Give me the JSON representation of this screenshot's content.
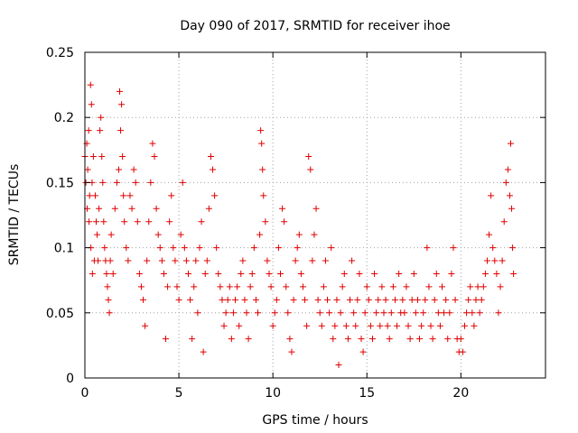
{
  "chart_data": {
    "type": "scatter",
    "title": "Day 090 of 2017, SRMTID for receiver ihoe",
    "xlabel": "GPS time / hours",
    "ylabel": "SRMTID / TECUs",
    "xlim": [
      0,
      24.5
    ],
    "ylim": [
      0,
      0.25
    ],
    "xticks": [
      0,
      5,
      10,
      15,
      20
    ],
    "xtick_labels": [
      "0",
      "5",
      "10",
      "15",
      "20"
    ],
    "yticks": [
      0,
      0.05,
      0.1,
      0.15,
      0.2,
      0.25
    ],
    "ytick_labels": [
      "0",
      "0.05",
      "0.1",
      "0.15",
      "0.2",
      "0.25"
    ],
    "grid": true,
    "marker": "+",
    "color": "#e00000",
    "series": [
      {
        "name": "ihoe",
        "points": [
          [
            0.0,
            0.17
          ],
          [
            0.05,
            0.15
          ],
          [
            0.1,
            0.18
          ],
          [
            0.12,
            0.13
          ],
          [
            0.15,
            0.16
          ],
          [
            0.2,
            0.19
          ],
          [
            0.22,
            0.12
          ],
          [
            0.25,
            0.14
          ],
          [
            0.3,
            0.225
          ],
          [
            0.32,
            0.1
          ],
          [
            0.35,
            0.21
          ],
          [
            0.38,
            0.15
          ],
          [
            0.4,
            0.08
          ],
          [
            0.45,
            0.17
          ],
          [
            0.5,
            0.09
          ],
          [
            0.55,
            0.14
          ],
          [
            0.6,
            0.12
          ],
          [
            0.65,
            0.11
          ],
          [
            0.7,
            0.09
          ],
          [
            0.75,
            0.13
          ],
          [
            0.8,
            0.19
          ],
          [
            0.85,
            0.2
          ],
          [
            0.9,
            0.17
          ],
          [
            0.95,
            0.15
          ],
          [
            1.0,
            0.12
          ],
          [
            1.05,
            0.1
          ],
          [
            1.1,
            0.09
          ],
          [
            1.15,
            0.08
          ],
          [
            1.2,
            0.07
          ],
          [
            1.25,
            0.06
          ],
          [
            1.3,
            0.05
          ],
          [
            1.35,
            0.09
          ],
          [
            1.4,
            0.11
          ],
          [
            1.5,
            0.08
          ],
          [
            1.6,
            0.13
          ],
          [
            1.7,
            0.15
          ],
          [
            1.8,
            0.16
          ],
          [
            1.85,
            0.22
          ],
          [
            1.9,
            0.19
          ],
          [
            1.95,
            0.21
          ],
          [
            2.0,
            0.17
          ],
          [
            2.05,
            0.14
          ],
          [
            2.1,
            0.12
          ],
          [
            2.2,
            0.1
          ],
          [
            2.3,
            0.09
          ],
          [
            2.4,
            0.14
          ],
          [
            2.5,
            0.13
          ],
          [
            2.6,
            0.16
          ],
          [
            2.7,
            0.15
          ],
          [
            2.8,
            0.12
          ],
          [
            2.9,
            0.08
          ],
          [
            3.0,
            0.07
          ],
          [
            3.1,
            0.06
          ],
          [
            3.2,
            0.04
          ],
          [
            3.3,
            0.09
          ],
          [
            3.4,
            0.12
          ],
          [
            3.5,
            0.15
          ],
          [
            3.6,
            0.18
          ],
          [
            3.7,
            0.17
          ],
          [
            3.8,
            0.13
          ],
          [
            3.9,
            0.11
          ],
          [
            4.0,
            0.1
          ],
          [
            4.1,
            0.09
          ],
          [
            4.2,
            0.08
          ],
          [
            4.3,
            0.03
          ],
          [
            4.4,
            0.07
          ],
          [
            4.5,
            0.12
          ],
          [
            4.6,
            0.14
          ],
          [
            4.7,
            0.1
          ],
          [
            4.8,
            0.09
          ],
          [
            4.9,
            0.07
          ],
          [
            5.0,
            0.06
          ],
          [
            5.1,
            0.11
          ],
          [
            5.2,
            0.15
          ],
          [
            5.3,
            0.1
          ],
          [
            5.4,
            0.09
          ],
          [
            5.5,
            0.08
          ],
          [
            5.6,
            0.06
          ],
          [
            5.7,
            0.03
          ],
          [
            5.8,
            0.07
          ],
          [
            5.9,
            0.09
          ],
          [
            6.0,
            0.05
          ],
          [
            6.1,
            0.1
          ],
          [
            6.2,
            0.12
          ],
          [
            6.3,
            0.02
          ],
          [
            6.4,
            0.08
          ],
          [
            6.5,
            0.09
          ],
          [
            6.6,
            0.13
          ],
          [
            6.7,
            0.17
          ],
          [
            6.8,
            0.16
          ],
          [
            6.9,
            0.14
          ],
          [
            7.0,
            0.1
          ],
          [
            7.1,
            0.08
          ],
          [
            7.2,
            0.07
          ],
          [
            7.3,
            0.06
          ],
          [
            7.4,
            0.04
          ],
          [
            7.5,
            0.05
          ],
          [
            7.6,
            0.06
          ],
          [
            7.7,
            0.07
          ],
          [
            7.8,
            0.03
          ],
          [
            7.9,
            0.05
          ],
          [
            8.0,
            0.06
          ],
          [
            8.1,
            0.07
          ],
          [
            8.2,
            0.04
          ],
          [
            8.3,
            0.08
          ],
          [
            8.4,
            0.09
          ],
          [
            8.5,
            0.06
          ],
          [
            8.6,
            0.05
          ],
          [
            8.7,
            0.03
          ],
          [
            8.8,
            0.07
          ],
          [
            8.9,
            0.08
          ],
          [
            9.0,
            0.1
          ],
          [
            9.1,
            0.06
          ],
          [
            9.2,
            0.05
          ],
          [
            9.3,
            0.11
          ],
          [
            9.35,
            0.19
          ],
          [
            9.4,
            0.18
          ],
          [
            9.45,
            0.16
          ],
          [
            9.5,
            0.14
          ],
          [
            9.6,
            0.12
          ],
          [
            9.7,
            0.09
          ],
          [
            9.8,
            0.08
          ],
          [
            9.9,
            0.07
          ],
          [
            10.0,
            0.04
          ],
          [
            10.1,
            0.05
          ],
          [
            10.2,
            0.06
          ],
          [
            10.3,
            0.1
          ],
          [
            10.4,
            0.08
          ],
          [
            10.5,
            0.13
          ],
          [
            10.6,
            0.12
          ],
          [
            10.7,
            0.07
          ],
          [
            10.8,
            0.05
          ],
          [
            10.9,
            0.03
          ],
          [
            11.0,
            0.02
          ],
          [
            11.1,
            0.06
          ],
          [
            11.2,
            0.09
          ],
          [
            11.3,
            0.1
          ],
          [
            11.4,
            0.11
          ],
          [
            11.5,
            0.08
          ],
          [
            11.6,
            0.07
          ],
          [
            11.7,
            0.06
          ],
          [
            11.8,
            0.04
          ],
          [
            11.9,
            0.17
          ],
          [
            12.0,
            0.16
          ],
          [
            12.1,
            0.09
          ],
          [
            12.2,
            0.11
          ],
          [
            12.3,
            0.13
          ],
          [
            12.4,
            0.06
          ],
          [
            12.5,
            0.05
          ],
          [
            12.6,
            0.04
          ],
          [
            12.7,
            0.07
          ],
          [
            12.8,
            0.09
          ],
          [
            12.9,
            0.06
          ],
          [
            13.0,
            0.05
          ],
          [
            13.1,
            0.1
          ],
          [
            13.2,
            0.03
          ],
          [
            13.3,
            0.04
          ],
          [
            13.4,
            0.06
          ],
          [
            13.5,
            0.01
          ],
          [
            13.6,
            0.05
          ],
          [
            13.7,
            0.07
          ],
          [
            13.8,
            0.08
          ],
          [
            13.9,
            0.04
          ],
          [
            14.0,
            0.03
          ],
          [
            14.1,
            0.06
          ],
          [
            14.2,
            0.09
          ],
          [
            14.3,
            0.05
          ],
          [
            14.4,
            0.04
          ],
          [
            14.5,
            0.06
          ],
          [
            14.6,
            0.08
          ],
          [
            14.7,
            0.03
          ],
          [
            14.8,
            0.02
          ],
          [
            14.9,
            0.05
          ],
          [
            15.0,
            0.07
          ],
          [
            15.1,
            0.06
          ],
          [
            15.2,
            0.04
          ],
          [
            15.3,
            0.03
          ],
          [
            15.4,
            0.08
          ],
          [
            15.5,
            0.05
          ],
          [
            15.6,
            0.06
          ],
          [
            15.7,
            0.04
          ],
          [
            15.8,
            0.07
          ],
          [
            15.9,
            0.05
          ],
          [
            16.0,
            0.06
          ],
          [
            16.1,
            0.04
          ],
          [
            16.2,
            0.03
          ],
          [
            16.3,
            0.05
          ],
          [
            16.4,
            0.07
          ],
          [
            16.5,
            0.06
          ],
          [
            16.6,
            0.04
          ],
          [
            16.7,
            0.08
          ],
          [
            16.8,
            0.05
          ],
          [
            16.9,
            0.06
          ],
          [
            17.0,
            0.05
          ],
          [
            17.1,
            0.07
          ],
          [
            17.2,
            0.04
          ],
          [
            17.3,
            0.03
          ],
          [
            17.4,
            0.06
          ],
          [
            17.5,
            0.08
          ],
          [
            17.6,
            0.05
          ],
          [
            17.7,
            0.06
          ],
          [
            17.8,
            0.03
          ],
          [
            17.9,
            0.04
          ],
          [
            18.0,
            0.05
          ],
          [
            18.1,
            0.06
          ],
          [
            18.2,
            0.1
          ],
          [
            18.3,
            0.07
          ],
          [
            18.4,
            0.04
          ],
          [
            18.5,
            0.03
          ],
          [
            18.6,
            0.06
          ],
          [
            18.7,
            0.08
          ],
          [
            18.8,
            0.05
          ],
          [
            18.9,
            0.04
          ],
          [
            19.0,
            0.07
          ],
          [
            19.1,
            0.05
          ],
          [
            19.2,
            0.06
          ],
          [
            19.3,
            0.03
          ],
          [
            19.4,
            0.05
          ],
          [
            19.5,
            0.08
          ],
          [
            19.6,
            0.1
          ],
          [
            19.7,
            0.06
          ],
          [
            19.8,
            0.03
          ],
          [
            19.9,
            0.02
          ],
          [
            20.0,
            0.03
          ],
          [
            20.1,
            0.02
          ],
          [
            20.2,
            0.04
          ],
          [
            20.3,
            0.05
          ],
          [
            20.4,
            0.06
          ],
          [
            20.5,
            0.07
          ],
          [
            20.6,
            0.05
          ],
          [
            20.7,
            0.04
          ],
          [
            20.8,
            0.06
          ],
          [
            20.9,
            0.07
          ],
          [
            21.0,
            0.05
          ],
          [
            21.1,
            0.06
          ],
          [
            21.2,
            0.07
          ],
          [
            21.3,
            0.08
          ],
          [
            21.4,
            0.09
          ],
          [
            21.5,
            0.11
          ],
          [
            21.6,
            0.14
          ],
          [
            21.7,
            0.1
          ],
          [
            21.8,
            0.09
          ],
          [
            21.9,
            0.08
          ],
          [
            22.0,
            0.05
          ],
          [
            22.1,
            0.07
          ],
          [
            22.2,
            0.09
          ],
          [
            22.3,
            0.12
          ],
          [
            22.4,
            0.15
          ],
          [
            22.5,
            0.16
          ],
          [
            22.6,
            0.14
          ],
          [
            22.65,
            0.18
          ],
          [
            22.7,
            0.13
          ],
          [
            22.75,
            0.1
          ],
          [
            22.8,
            0.08
          ]
        ]
      }
    ]
  }
}
